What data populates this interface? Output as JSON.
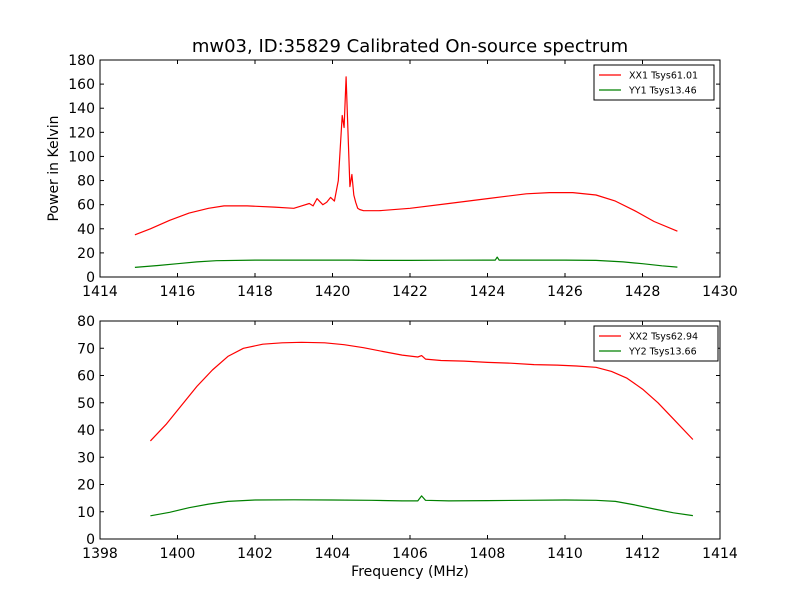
{
  "figure_title": "mw03, ID:35829 Calibrated On-source spectrum",
  "colors": {
    "xx": "#ff0000",
    "yy": "#008000",
    "axes": "#000000",
    "background": "#ffffff"
  },
  "chart_data": [
    {
      "type": "line",
      "title": "mw03, ID:35829 Calibrated On-source spectrum",
      "xlabel": "",
      "ylabel": "Power in Kelvin",
      "xlim": [
        1414,
        1430
      ],
      "ylim": [
        0,
        180
      ],
      "xticks": [
        "1414",
        "1416",
        "1418",
        "1420",
        "1422",
        "1424",
        "1426",
        "1428",
        "1430"
      ],
      "yticks": [
        "0",
        "20",
        "40",
        "60",
        "80",
        "100",
        "120",
        "140",
        "160",
        "180"
      ],
      "grid": false,
      "legend_position": "top-right",
      "series": [
        {
          "name": "XX1 Tsys61.01",
          "color": "#ff0000",
          "x": [
            1414.9,
            1415.3,
            1415.8,
            1416.3,
            1416.8,
            1417.2,
            1417.8,
            1418.5,
            1419.0,
            1419.2,
            1419.4,
            1419.5,
            1419.6,
            1419.75,
            1419.85,
            1419.95,
            1420.05,
            1420.15,
            1420.25,
            1420.3,
            1420.35,
            1420.4,
            1420.45,
            1420.5,
            1420.55,
            1420.6,
            1420.65,
            1420.7,
            1420.8,
            1421.2,
            1422.0,
            1423.0,
            1424.0,
            1424.5,
            1425.0,
            1425.6,
            1426.2,
            1426.8,
            1427.3,
            1427.8,
            1428.3,
            1428.9
          ],
          "y": [
            35,
            40,
            47,
            53,
            57,
            59,
            59,
            58,
            57,
            59,
            61,
            59,
            65,
            60,
            62,
            66,
            63,
            80,
            134,
            124,
            166,
            120,
            75,
            85,
            68,
            62,
            57,
            56,
            55,
            55,
            57,
            61,
            65,
            67,
            69,
            70,
            70,
            68,
            63,
            55,
            46,
            38
          ]
        },
        {
          "name": "YY1 Tsys13.46",
          "color": "#008000",
          "x": [
            1414.9,
            1415.5,
            1416.0,
            1416.5,
            1417.0,
            1418.0,
            1419.0,
            1420.0,
            1420.5,
            1421.0,
            1422.0,
            1423.0,
            1424.0,
            1424.2,
            1424.25,
            1424.3,
            1425.0,
            1426.0,
            1426.8,
            1427.5,
            1428.0,
            1428.5,
            1428.9
          ],
          "y": [
            8,
            9.5,
            11,
            12.5,
            13.5,
            14,
            14,
            14,
            14,
            13.8,
            13.8,
            13.9,
            14,
            14,
            16.5,
            14,
            14,
            14,
            13.8,
            12.5,
            11,
            9.3,
            8.2
          ]
        }
      ]
    },
    {
      "type": "line",
      "title": "",
      "xlabel": "Frequency (MHz)",
      "ylabel": "",
      "xlim": [
        1398,
        1414
      ],
      "ylim": [
        0,
        80
      ],
      "xticks": [
        "1398",
        "1400",
        "1402",
        "1404",
        "1406",
        "1408",
        "1410",
        "1412",
        "1414"
      ],
      "yticks": [
        "0",
        "10",
        "20",
        "30",
        "40",
        "50",
        "60",
        "70",
        "80"
      ],
      "grid": false,
      "legend_position": "top-right",
      "series": [
        {
          "name": "XX2 Tsys62.94",
          "color": "#ff0000",
          "x": [
            1399.3,
            1399.7,
            1400.1,
            1400.5,
            1400.9,
            1401.3,
            1401.7,
            1402.2,
            1402.7,
            1403.2,
            1403.8,
            1404.3,
            1404.8,
            1405.3,
            1405.8,
            1406.2,
            1406.3,
            1406.4,
            1406.8,
            1407.4,
            1408.0,
            1408.6,
            1409.2,
            1409.8,
            1410.3,
            1410.8,
            1411.2,
            1411.6,
            1412.0,
            1412.4,
            1412.8,
            1413.3
          ],
          "y": [
            36,
            42,
            49,
            56,
            62,
            67,
            70,
            71.5,
            72,
            72.2,
            72,
            71.3,
            70.2,
            68.8,
            67.5,
            66.8,
            67.3,
            66,
            65.5,
            65.3,
            64.8,
            64.5,
            64,
            63.8,
            63.5,
            63,
            61.5,
            59,
            55,
            50,
            44,
            36.5
          ]
        },
        {
          "name": "YY2 Tsys13.66",
          "color": "#008000",
          "x": [
            1399.3,
            1399.8,
            1400.3,
            1400.8,
            1401.3,
            1402.0,
            1403.0,
            1404.0,
            1405.0,
            1405.8,
            1406.2,
            1406.3,
            1406.4,
            1407.0,
            1408.0,
            1409.0,
            1410.0,
            1410.8,
            1411.3,
            1411.8,
            1412.3,
            1412.8,
            1413.3
          ],
          "y": [
            8.5,
            9.8,
            11.5,
            12.8,
            13.8,
            14.3,
            14.4,
            14.3,
            14.2,
            14,
            14,
            15.8,
            14.2,
            14,
            14.1,
            14.2,
            14.3,
            14.2,
            13.8,
            12.5,
            11,
            9.6,
            8.6
          ]
        }
      ]
    }
  ]
}
